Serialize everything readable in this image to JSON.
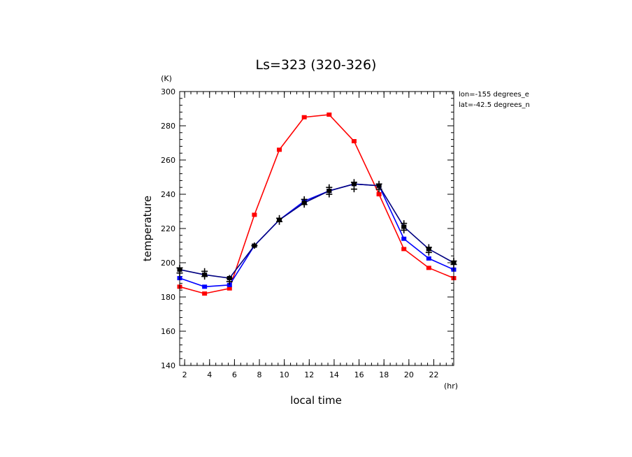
{
  "chart_data": {
    "type": "line",
    "title": "Ls=323 (320-326)",
    "xlabel": "local time",
    "ylabel": "temperature",
    "x_unit": "(hr)",
    "y_unit": "(K)",
    "xlim": [
      1.6,
      23.6
    ],
    "ylim": [
      140,
      300
    ],
    "xticks": [
      2,
      4,
      6,
      8,
      10,
      12,
      14,
      16,
      18,
      20,
      22
    ],
    "yticks": [
      140,
      160,
      180,
      200,
      220,
      240,
      260,
      280,
      300
    ],
    "annotations": [
      "lon=-155 degrees_e",
      "lat=-42.5 degrees_n"
    ],
    "grid": false,
    "x": [
      1.6,
      3.6,
      5.6,
      7.6,
      9.6,
      11.6,
      13.6,
      15.6,
      17.6,
      19.6,
      21.6,
      23.6
    ],
    "series": [
      {
        "color": "#ff0000",
        "values": [
          186,
          182,
          185,
          228,
          266,
          285,
          286.5,
          271,
          240,
          208,
          197,
          191
        ]
      },
      {
        "color": "#0000ff",
        "values": [
          191,
          186,
          187,
          210,
          225,
          236,
          242,
          246,
          245,
          214,
          202.5,
          196
        ]
      },
      {
        "color": "#000080",
        "values": [
          196,
          193,
          191,
          210,
          225,
          235,
          242,
          246,
          245,
          221,
          208,
          200
        ]
      }
    ],
    "black_markers": [
      [
        1.6,
        197
      ],
      [
        1.6,
        194
      ],
      [
        3.6,
        195
      ],
      [
        3.6,
        192
      ],
      [
        5.6,
        191
      ],
      [
        5.6,
        189
      ],
      [
        7.6,
        210
      ],
      [
        9.6,
        226
      ],
      [
        9.6,
        224
      ],
      [
        11.6,
        237
      ],
      [
        11.6,
        234
      ],
      [
        13.6,
        244
      ],
      [
        13.6,
        240
      ],
      [
        15.6,
        247
      ],
      [
        15.6,
        243
      ],
      [
        17.6,
        246
      ],
      [
        17.6,
        243
      ],
      [
        19.6,
        223
      ],
      [
        19.6,
        219
      ],
      [
        21.6,
        209
      ],
      [
        21.6,
        206
      ],
      [
        23.6,
        201
      ],
      [
        23.6,
        199
      ]
    ]
  }
}
